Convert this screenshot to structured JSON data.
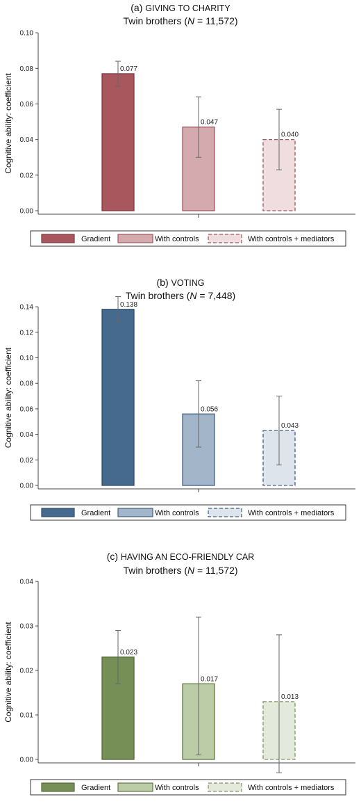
{
  "chart_data": [
    {
      "type": "bar",
      "title_prefix": "(a)",
      "title": "GIVING TO CHARITY",
      "subtitle_pre": "Twin brothers (",
      "subtitle_n": "N",
      "subtitle_post": " = 11,572)",
      "ylabel": "Cognitive ability: coefficient",
      "ylim": [
        0,
        0.1
      ],
      "yticks": [
        "0.00",
        "0.02",
        "0.04",
        "0.06",
        "0.08",
        "0.10"
      ],
      "series": [
        {
          "name": "Gradient",
          "value": 0.077,
          "label": "0.077",
          "ci": [
            0.07,
            0.084
          ],
          "fill": "#a8575d",
          "stroke": "#7e3a40",
          "dashed": false
        },
        {
          "name": "With controls",
          "value": 0.047,
          "label": "0.047",
          "ci": [
            0.03,
            0.064
          ],
          "fill": "#d4aaae",
          "stroke": "#a0575d",
          "dashed": false
        },
        {
          "name": "With controls + mediators",
          "value": 0.04,
          "label": "0.040",
          "ci": [
            0.023,
            0.057
          ],
          "fill": "#efdde0",
          "stroke": "#a0575d",
          "dashed": true
        }
      ],
      "legend_position": "bottom"
    },
    {
      "type": "bar",
      "title_prefix": "(b)",
      "title": "VOTING",
      "subtitle_pre": "Twin brothers (",
      "subtitle_n": "N",
      "subtitle_post": " = 7,448)",
      "ylabel": "Cognitive ability: coefficient",
      "ylim": [
        0,
        0.14
      ],
      "yticks": [
        "0.00",
        "0.02",
        "0.04",
        "0.06",
        "0.08",
        "0.10",
        "0.12",
        "0.14"
      ],
      "series": [
        {
          "name": "Gradient",
          "value": 0.138,
          "label": "0.138",
          "ci": [
            0.128,
            0.148
          ],
          "fill": "#466a8d",
          "stroke": "#2e4d6c",
          "dashed": false
        },
        {
          "name": "With controls",
          "value": 0.056,
          "label": "0.056",
          "ci": [
            0.03,
            0.082
          ],
          "fill": "#a3b5c8",
          "stroke": "#3e6184",
          "dashed": false
        },
        {
          "name": "With controls + mediators",
          "value": 0.043,
          "label": "0.043",
          "ci": [
            0.016,
            0.07
          ],
          "fill": "#dde4ec",
          "stroke": "#3e6184",
          "dashed": true
        }
      ],
      "legend_position": "bottom"
    },
    {
      "type": "bar",
      "title_prefix": "(c)",
      "title": "HAVING AN ECO-FRIENDLY CAR",
      "subtitle_pre": "Twin brothers (",
      "subtitle_n": "N",
      "subtitle_post": " = 11,572)",
      "ylabel": "Cognitive ability: coefficient",
      "ylim": [
        0,
        0.04
      ],
      "yticks": [
        "0.00",
        "0.01",
        "0.02",
        "0.03",
        "0.04"
      ],
      "series": [
        {
          "name": "Gradient",
          "value": 0.023,
          "label": "0.023",
          "ci": [
            0.017,
            0.029
          ],
          "fill": "#768f56",
          "stroke": "#526a36",
          "dashed": false
        },
        {
          "name": "With controls",
          "value": 0.017,
          "label": "0.017",
          "ci": [
            0.001,
            0.032
          ],
          "fill": "#bccca6",
          "stroke": "#5f7a42",
          "dashed": false
        },
        {
          "name": "With controls + mediators",
          "value": 0.013,
          "label": "0.013",
          "ci": [
            -0.003,
            0.028
          ],
          "fill": "#e4eadb",
          "stroke": "#7c9560",
          "dashed": true
        }
      ],
      "legend_position": "bottom"
    }
  ]
}
